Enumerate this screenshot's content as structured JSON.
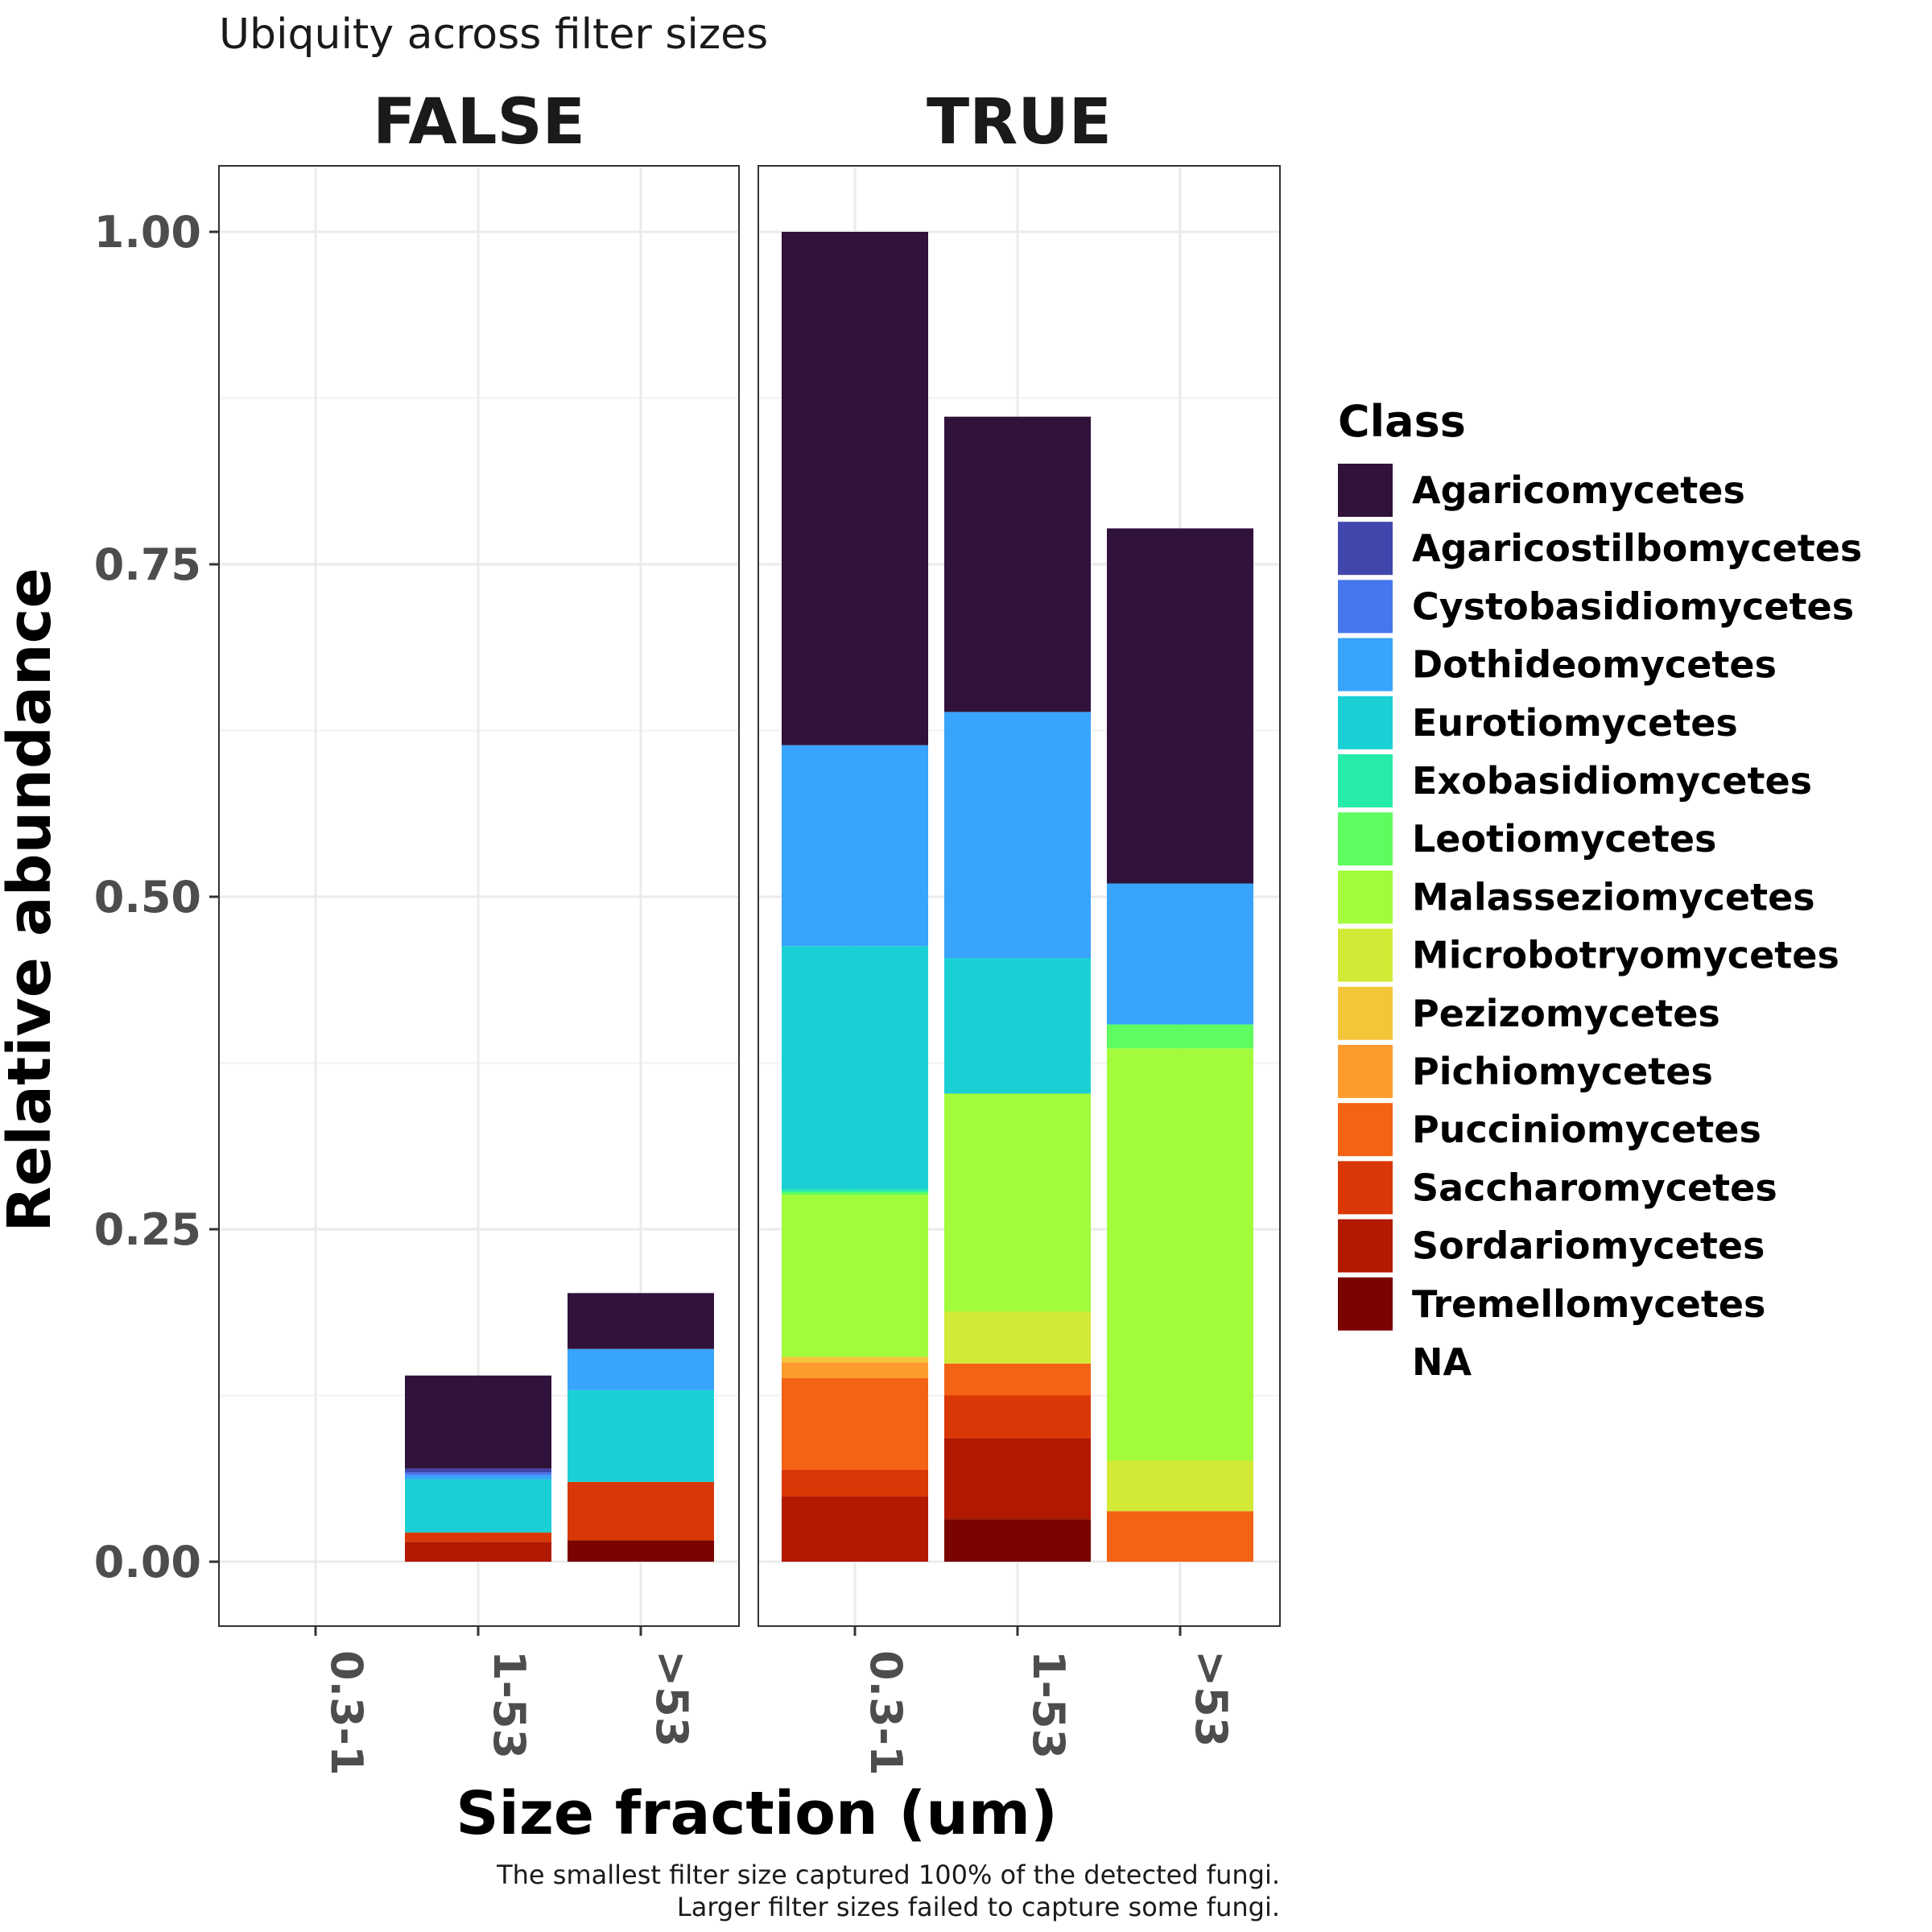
{
  "chart_data": {
    "type": "bar",
    "stacked": true,
    "title": "Ubiquity across filter sizes",
    "xlabel": "Size fraction (um)",
    "ylabel": "Relative abundance",
    "caption_lines": [
      "The smallest filter size captured 100% of the detected fungi.",
      "Larger filter sizes failed to capture some fungi."
    ],
    "ylim": [
      -0.06,
      1.06
    ],
    "yticks": [
      "0.00",
      "0.25",
      "0.50",
      "0.75",
      "1.00"
    ],
    "ytick_values": [
      0,
      0.25,
      0.5,
      0.75,
      1.0
    ],
    "grid": true,
    "legend_position": "right",
    "legend_title": "Class",
    "categories": [
      "0.3-1",
      "1-53",
      ">53"
    ],
    "classes": [
      {
        "name": "Agaricomycetes",
        "color": "#30123b"
      },
      {
        "name": "Agaricostilbomycetes",
        "color": "#4146ad"
      },
      {
        "name": "Cystobasidiomycetes",
        "color": "#4777ef"
      },
      {
        "name": "Dothideomycetes",
        "color": "#39a4fb"
      },
      {
        "name": "Eurotiomycetes",
        "color": "#1bd0d5"
      },
      {
        "name": "Exobasidiomycetes",
        "color": "#25eca7"
      },
      {
        "name": "Leotiomycetes",
        "color": "#5ffc5f"
      },
      {
        "name": "Malasseziomycetes",
        "color": "#a2fc3c"
      },
      {
        "name": "Microbotryomycetes",
        "color": "#d2e935"
      },
      {
        "name": "Pezizomycetes",
        "color": "#f3c63a"
      },
      {
        "name": "Pichiomycetes",
        "color": "#fe9b2d"
      },
      {
        "name": "Pucciniomycetes",
        "color": "#f36315"
      },
      {
        "name": "Saccharomycetes",
        "color": "#d93806"
      },
      {
        "name": "Sordariomycetes",
        "color": "#b11901"
      },
      {
        "name": "Tremellomycetes",
        "color": "#7a0402"
      },
      {
        "name": "NA",
        "color": "#ffffff"
      }
    ],
    "panels": [
      {
        "label": "FALSE",
        "bars": [
          {
            "category": "0.3-1",
            "segments": []
          },
          {
            "category": "1-53",
            "segments": [
              {
                "class": "Sordariomycetes",
                "value": 0.015
              },
              {
                "class": "Saccharomycetes",
                "value": 0.007
              },
              {
                "class": "Eurotiomycetes",
                "value": 0.04
              },
              {
                "class": "Dothideomycetes",
                "value": 0.003
              },
              {
                "class": "Cystobasidiomycetes",
                "value": 0.002
              },
              {
                "class": "Agaricostilbomycetes",
                "value": 0.003
              },
              {
                "class": "Agaricomycetes",
                "value": 0.07
              }
            ]
          },
          {
            "category": ">53",
            "segments": [
              {
                "class": "Tremellomycetes",
                "value": 0.016
              },
              {
                "class": "Saccharomycetes",
                "value": 0.044
              },
              {
                "class": "Eurotiomycetes",
                "value": 0.069
              },
              {
                "class": "Dothideomycetes",
                "value": 0.031
              },
              {
                "class": "Agaricomycetes",
                "value": 0.042
              }
            ]
          }
        ]
      },
      {
        "label": "TRUE",
        "bars": [
          {
            "category": "0.3-1",
            "segments": [
              {
                "class": "Sordariomycetes",
                "value": 0.049
              },
              {
                "class": "Saccharomycetes",
                "value": 0.02
              },
              {
                "class": "Pucciniomycetes",
                "value": 0.069
              },
              {
                "class": "Pichiomycetes",
                "value": 0.012
              },
              {
                "class": "Pezizomycetes",
                "value": 0.004
              },
              {
                "class": "Malasseziomycetes",
                "value": 0.122
              },
              {
                "class": "Leotiomycetes",
                "value": 0.002
              },
              {
                "class": "Exobasidiomycetes",
                "value": 0.002
              },
              {
                "class": "Eurotiomycetes",
                "value": 0.183
              },
              {
                "class": "Dothideomycetes",
                "value": 0.151
              },
              {
                "class": "Agaricomycetes",
                "value": 0.386
              }
            ]
          },
          {
            "category": "1-53",
            "segments": [
              {
                "class": "Tremellomycetes",
                "value": 0.032
              },
              {
                "class": "Sordariomycetes",
                "value": 0.061
              },
              {
                "class": "Saccharomycetes",
                "value": 0.032
              },
              {
                "class": "Pucciniomycetes",
                "value": 0.024
              },
              {
                "class": "Microbotryomycetes",
                "value": 0.039
              },
              {
                "class": "Malasseziomycetes",
                "value": 0.164
              },
              {
                "class": "Eurotiomycetes",
                "value": 0.102
              },
              {
                "class": "Dothideomycetes",
                "value": 0.185
              },
              {
                "class": "Agaricomycetes",
                "value": 0.222
              }
            ]
          },
          {
            "category": ">53",
            "segments": [
              {
                "class": "Pucciniomycetes",
                "value": 0.038
              },
              {
                "class": "Microbotryomycetes",
                "value": 0.038
              },
              {
                "class": "Malasseziomycetes",
                "value": 0.31
              },
              {
                "class": "Leotiomycetes",
                "value": 0.018
              },
              {
                "class": "Dothideomycetes",
                "value": 0.106
              },
              {
                "class": "Agaricomycetes",
                "value": 0.267
              }
            ]
          }
        ]
      }
    ]
  }
}
